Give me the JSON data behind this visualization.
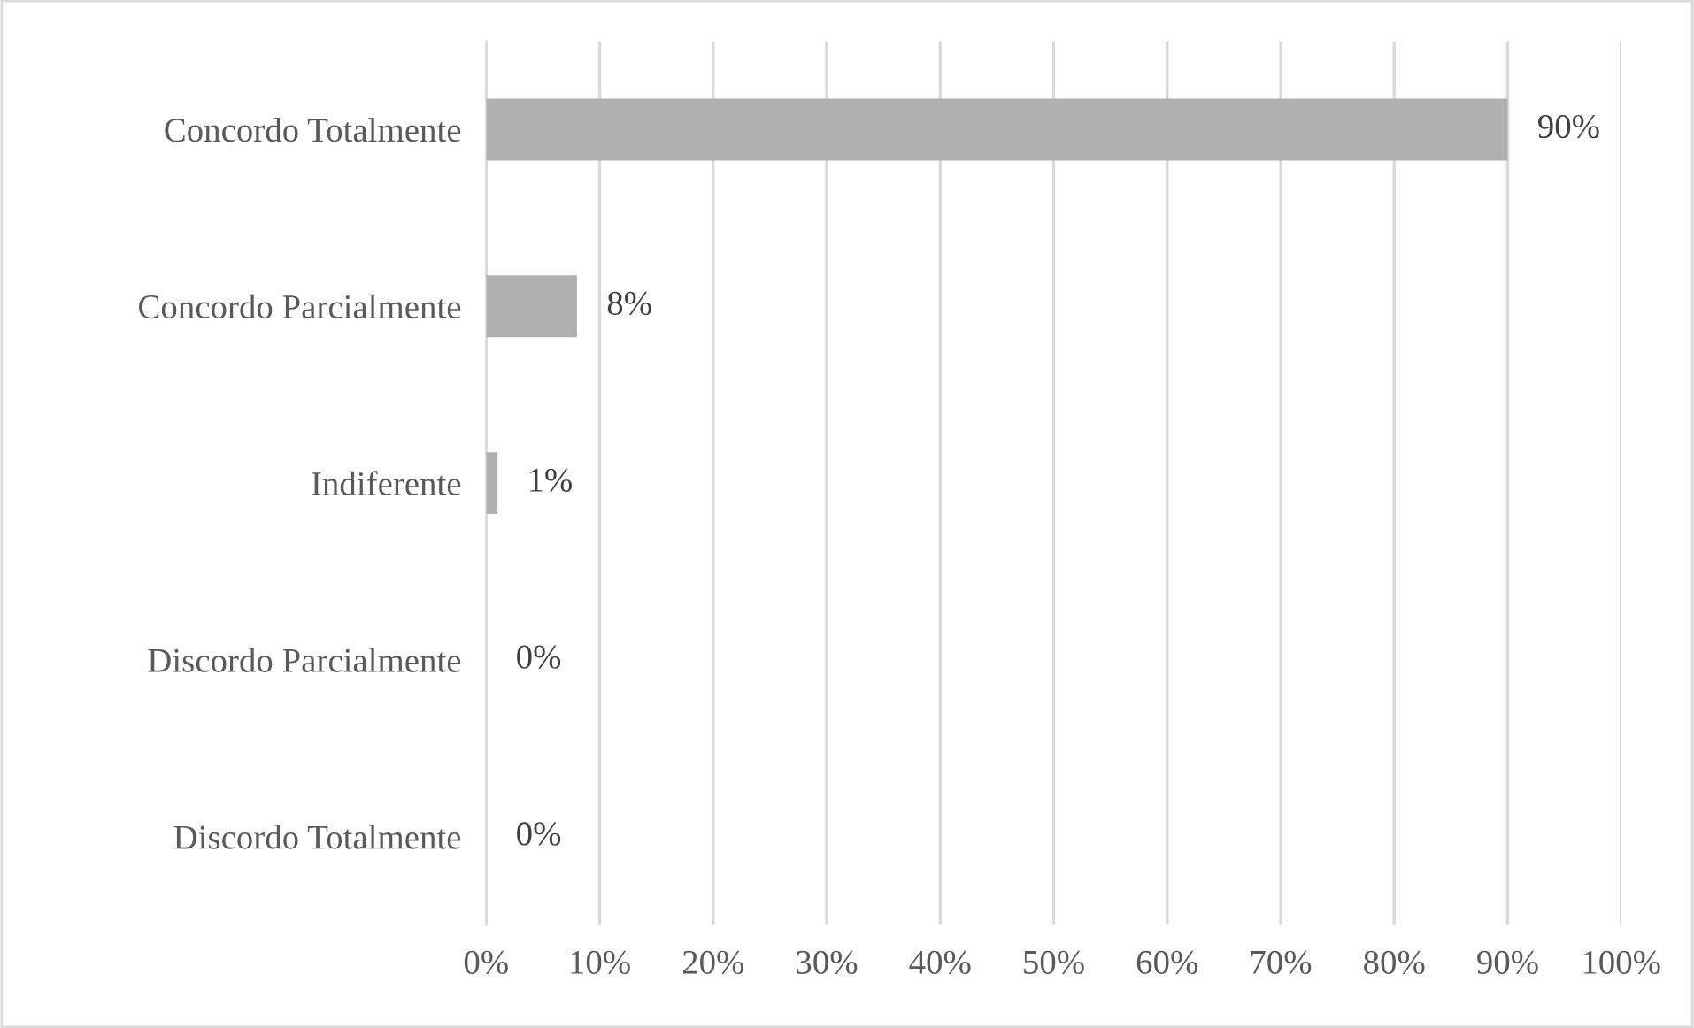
{
  "chart_data": {
    "type": "bar",
    "orientation": "horizontal",
    "categories": [
      "Concordo Totalmente",
      "Concordo Parcialmente",
      "Indiferente",
      "Discordo Parcialmente",
      "Discordo Totalmente"
    ],
    "values": [
      90,
      8,
      1,
      0,
      0
    ],
    "value_labels": [
      "90%",
      "8%",
      "1%",
      "0%",
      "0%"
    ],
    "color": "#b0b0b0",
    "xlim": [
      0,
      100
    ],
    "xticks": [
      {
        "value": 0,
        "label": "0%"
      },
      {
        "value": 10,
        "label": "10%"
      },
      {
        "value": 20,
        "label": "20%"
      },
      {
        "value": 30,
        "label": "30%"
      },
      {
        "value": 40,
        "label": "40%"
      },
      {
        "value": 50,
        "label": "50%"
      },
      {
        "value": 60,
        "label": "60%"
      },
      {
        "value": 70,
        "label": "70%"
      },
      {
        "value": 80,
        "label": "80%"
      },
      {
        "value": 90,
        "label": "90%"
      },
      {
        "value": 100,
        "label": "100%"
      }
    ],
    "grid": "x"
  }
}
